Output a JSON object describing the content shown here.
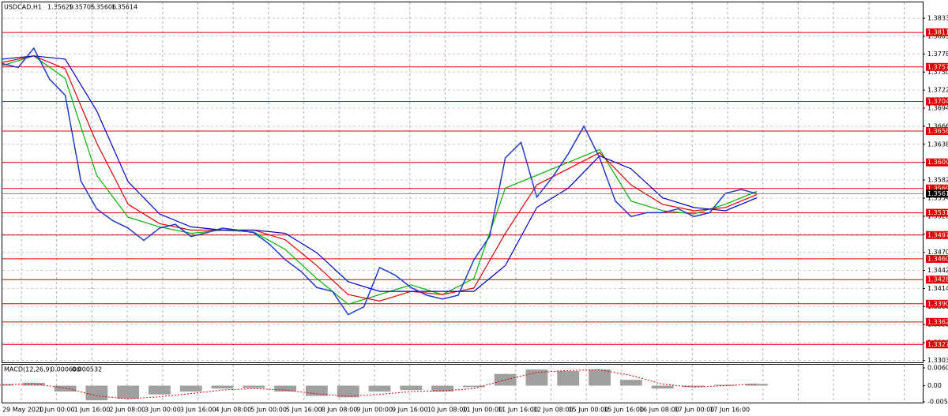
{
  "chart_data": {
    "type": "line",
    "symbol": "USDCAD,H1",
    "quote": [
      1.35629,
      1.35706,
      1.35606,
      1.35614
    ],
    "ylim": [
      1.33,
      1.3858
    ],
    "yticks": [
      {
        "value": 1.38335,
        "label": "1.38335"
      },
      {
        "value": 1.38055,
        "label": "1.38055"
      },
      {
        "value": 1.3778,
        "label": "1.37780"
      },
      {
        "value": 1.375,
        "label": "1.37500"
      },
      {
        "value": 1.3722,
        "label": "1.37220"
      },
      {
        "value": 1.3694,
        "label": "1.36940"
      },
      {
        "value": 1.3666,
        "label": "1.36660"
      },
      {
        "value": 1.3638,
        "label": "1.36380"
      },
      {
        "value": 1.361,
        "label": "1.36100"
      },
      {
        "value": 1.35825,
        "label": "1.35825"
      },
      {
        "value": 1.35545,
        "label": "1.35545"
      },
      {
        "value": 1.35265,
        "label": "1.35265"
      },
      {
        "value": 1.34985,
        "label": "1.34985"
      },
      {
        "value": 1.34705,
        "label": "1.34705"
      },
      {
        "value": 1.34425,
        "label": "1.34425"
      },
      {
        "value": 1.34145,
        "label": "1.34145"
      },
      {
        "value": 1.33865,
        "label": "1.33865"
      },
      {
        "value": 1.33585,
        "label": "1.33585"
      },
      {
        "value": 1.33305,
        "label": "1.33305"
      },
      {
        "value": 1.3303,
        "label": "1.33030"
      }
    ],
    "grid": true,
    "levels": [
      1.38114,
      1.37579,
      1.37045,
      1.36585,
      1.36099,
      1.35695,
      1.35318,
      1.34973,
      1.34604,
      1.34282,
      1.33908,
      1.33626,
      1.33278
    ],
    "level_color": "#e00000",
    "x_labels": [
      "29 May 2020",
      "1 Jun 00:00",
      "1 Jun 16:00",
      "2 Jun 08:00",
      "3 Jun 00:00",
      "3 Jun 16:00",
      "4 Jun 08:00",
      "5 Jun 00:00",
      "5 Jun 16:00",
      "8 Jun 08:00",
      "9 Jun 00:00",
      "9 Jun 16:00",
      "10 Jun 08:00",
      "11 Jun 00:00",
      "11 Jun 16:00",
      "12 Jun 08:00",
      "15 Jun 00:00",
      "15 Jun 16:00",
      "16 Jun 08:00",
      "17 Jun 00:00",
      "17 Jun 16:00"
    ],
    "price": {
      "color": "#1e3cc8",
      "values": [
        1.3763,
        1.3757,
        1.3787,
        1.3739,
        1.3714,
        1.3581,
        1.3538,
        1.352,
        1.3508,
        1.3489,
        1.3508,
        1.3514,
        1.3495,
        1.3501,
        1.3508,
        1.3505,
        1.3501,
        1.3483,
        1.3459,
        1.3441,
        1.3416,
        1.341,
        1.3374,
        1.3386,
        1.3447,
        1.3435,
        1.3416,
        1.3404,
        1.3398,
        1.3404,
        1.3459,
        1.3495,
        1.3617,
        1.3641,
        1.3556,
        1.3587,
        1.3623,
        1.3666,
        1.3617,
        1.355,
        1.3526,
        1.3532,
        1.3532,
        1.3538,
        1.3526,
        1.3532,
        1.3562,
        1.3568,
        1.35614
      ]
    },
    "series": [
      {
        "color": "#00b400",
        "values": [
          1.376,
          1.3775,
          1.374,
          1.359,
          1.3525,
          1.351,
          1.35,
          1.3505,
          1.3502,
          1.3475,
          1.343,
          1.339,
          1.3405,
          1.342,
          1.3405,
          1.343,
          1.357,
          1.359,
          1.361,
          1.363,
          1.355,
          1.3535,
          1.353,
          1.3545,
          1.3565
        ]
      },
      {
        "color": "#e00000",
        "values": [
          1.3765,
          1.3775,
          1.3755,
          1.364,
          1.3545,
          1.3515,
          1.3505,
          1.3505,
          1.3505,
          1.349,
          1.345,
          1.3405,
          1.3395,
          1.341,
          1.3405,
          1.3415,
          1.35,
          1.3575,
          1.36,
          1.3625,
          1.3575,
          1.3545,
          1.3535,
          1.354,
          1.356
        ]
      },
      {
        "color": "#0000c8",
        "values": [
          1.377,
          1.3775,
          1.377,
          1.369,
          1.358,
          1.353,
          1.351,
          1.3505,
          1.3505,
          1.35,
          1.347,
          1.3425,
          1.341,
          1.341,
          1.341,
          1.341,
          1.345,
          1.354,
          1.357,
          1.362,
          1.36,
          1.3555,
          1.354,
          1.3535,
          1.3555
        ]
      }
    ],
    "macd": {
      "label": "MACD(12,26,9)",
      "readout": [
        {
          "value": 0.0006,
          "label": "0.000600"
        },
        0.000532
      ],
      "ylim": [
        -0.00578,
        0.00715
      ],
      "yticks": [
        0.006051,
        {
          "value": 0,
          "label": "0.00"
        },
        -0.0055
      ],
      "hist_color": "#a0a0a0",
      "signal_color": "#e00000",
      "hist": [
        0.0005,
        0.001,
        -0.002,
        -0.005,
        -0.0045,
        -0.003,
        -0.002,
        -0.001,
        -0.0008,
        -0.002,
        -0.0035,
        -0.004,
        -0.002,
        -0.0015,
        -0.002,
        -0.0005,
        0.004,
        0.0055,
        0.005,
        0.0055,
        0.002,
        -0.001,
        -0.0005,
        0.0003,
        0.0006
      ],
      "signal": [
        0.0003,
        0.0006,
        -0.0008,
        -0.0035,
        -0.0045,
        -0.0038,
        -0.0027,
        -0.0015,
        -0.001,
        -0.0015,
        -0.0028,
        -0.0036,
        -0.003,
        -0.002,
        -0.0018,
        -0.001,
        0.002,
        0.0045,
        0.0052,
        0.0054,
        0.0035,
        0.0005,
        -0.0005,
        0,
        0.000532
      ]
    }
  }
}
